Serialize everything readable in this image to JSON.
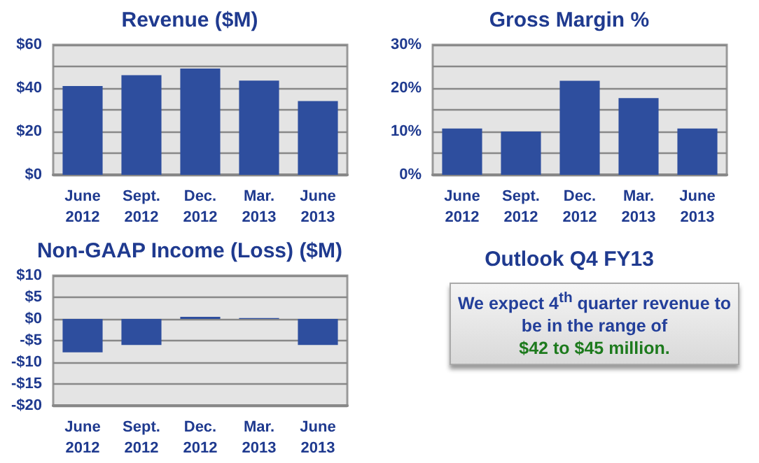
{
  "chart_data": [
    {
      "type": "bar",
      "title": "Revenue ($M)",
      "categories": [
        "June 2012",
        "Sept. 2012",
        "Dec. 2012",
        "Mar. 2013",
        "June 2013"
      ],
      "values": [
        41,
        46,
        49,
        43.5,
        34
      ],
      "color": "#2e4e9e",
      "ylim": [
        0,
        60
      ],
      "yticks": [
        {
          "value": 0,
          "label": "$0"
        },
        {
          "value": 10,
          "label": null
        },
        {
          "value": 20,
          "label": "$20"
        },
        {
          "value": 30,
          "label": null
        },
        {
          "value": 40,
          "label": "$40"
        },
        {
          "value": 50,
          "label": null
        },
        {
          "value": 60,
          "label": "$60"
        }
      ],
      "grid": "y"
    },
    {
      "type": "bar",
      "title": "Gross Margin %",
      "categories": [
        "June 2012",
        "Sept. 2012",
        "Dec. 2012",
        "Mar. 2013",
        "June 2013"
      ],
      "values": [
        10.7,
        10,
        21.7,
        17.7,
        10.7
      ],
      "color": "#2e4e9e",
      "ylim": [
        0,
        30
      ],
      "yticks": [
        {
          "value": 0,
          "label": "0%"
        },
        {
          "value": 5,
          "label": null
        },
        {
          "value": 10,
          "label": "10%"
        },
        {
          "value": 15,
          "label": null
        },
        {
          "value": 20,
          "label": "20%"
        },
        {
          "value": 25,
          "label": null
        },
        {
          "value": 30,
          "label": "30%"
        }
      ],
      "grid": "y"
    },
    {
      "type": "bar",
      "title": "Non-GAAP Income (Loss) ($M)",
      "categories": [
        "June 2012",
        "Sept. 2012",
        "Dec. 2012",
        "Mar. 2013",
        "June 2013"
      ],
      "values": [
        -7.7,
        -6,
        0.5,
        0.2,
        -6
      ],
      "color": "#2e4e9e",
      "ylim": [
        -20,
        10
      ],
      "yticks": [
        {
          "value": -20,
          "label": "-$20"
        },
        {
          "value": -15,
          "label": "-$15"
        },
        {
          "value": -10,
          "label": "-$10"
        },
        {
          "value": -5,
          "label": "-$5"
        },
        {
          "value": 0,
          "label": "$0"
        },
        {
          "value": 5,
          "label": "$5"
        },
        {
          "value": 10,
          "label": "$10"
        }
      ],
      "grid": "y"
    },
    {
      "type": "other",
      "title": "Outlook Q4 FY13",
      "annotations": [
        "We expect 4$^{th}$ quarter revenue to be in the range of",
        "$42 to $45 million."
      ]
    }
  ]
}
